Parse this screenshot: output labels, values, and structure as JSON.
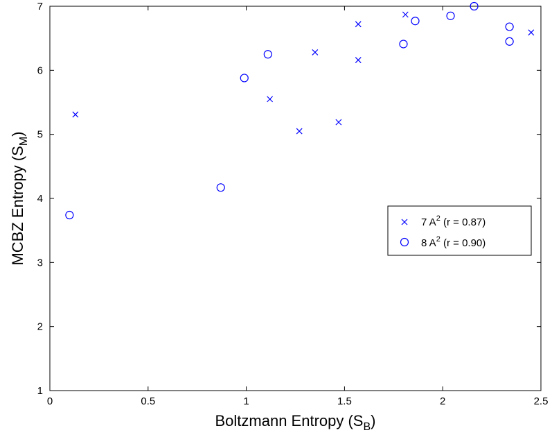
{
  "chart_data": {
    "type": "scatter",
    "xlabel": {
      "main": "Boltzmann Entropy (S",
      "sub": "B",
      "close": ")"
    },
    "ylabel": {
      "main": "MCBZ Entropy (S",
      "sub": "M",
      "close": ")"
    },
    "xlim": [
      0,
      2.5
    ],
    "ylim": [
      1,
      7
    ],
    "xticks": [
      0,
      0.5,
      1,
      1.5,
      2,
      2.5
    ],
    "xtick_labels": [
      "0",
      "0.5",
      "1",
      "1.5",
      "2",
      "2.5"
    ],
    "yticks": [
      1,
      2,
      3,
      4,
      5,
      6,
      7
    ],
    "ytick_labels": [
      "1",
      "2",
      "3",
      "4",
      "5",
      "6",
      "7"
    ],
    "grid": false,
    "legend_position": "right",
    "marker_color": "#0000ff",
    "series": [
      {
        "name": "7 A",
        "name_sup": "2",
        "name_suffix": " (r = 0.87)",
        "marker": "x",
        "points": [
          [
            0.13,
            5.31
          ],
          [
            1.12,
            5.55
          ],
          [
            1.27,
            5.05
          ],
          [
            1.35,
            6.28
          ],
          [
            1.47,
            5.19
          ],
          [
            1.57,
            6.72
          ],
          [
            1.57,
            6.16
          ],
          [
            1.81,
            6.87
          ],
          [
            2.45,
            6.59
          ]
        ]
      },
      {
        "name": "8 A",
        "name_sup": "2",
        "name_suffix": " (r = 0.90)",
        "marker": "circle",
        "points": [
          [
            0.1,
            3.74
          ],
          [
            0.87,
            4.17
          ],
          [
            0.99,
            5.88
          ],
          [
            1.11,
            6.25
          ],
          [
            1.8,
            6.41
          ],
          [
            1.86,
            6.77
          ],
          [
            2.04,
            6.85
          ],
          [
            2.16,
            7.0
          ],
          [
            2.34,
            6.68
          ],
          [
            2.34,
            6.45
          ]
        ]
      }
    ]
  }
}
